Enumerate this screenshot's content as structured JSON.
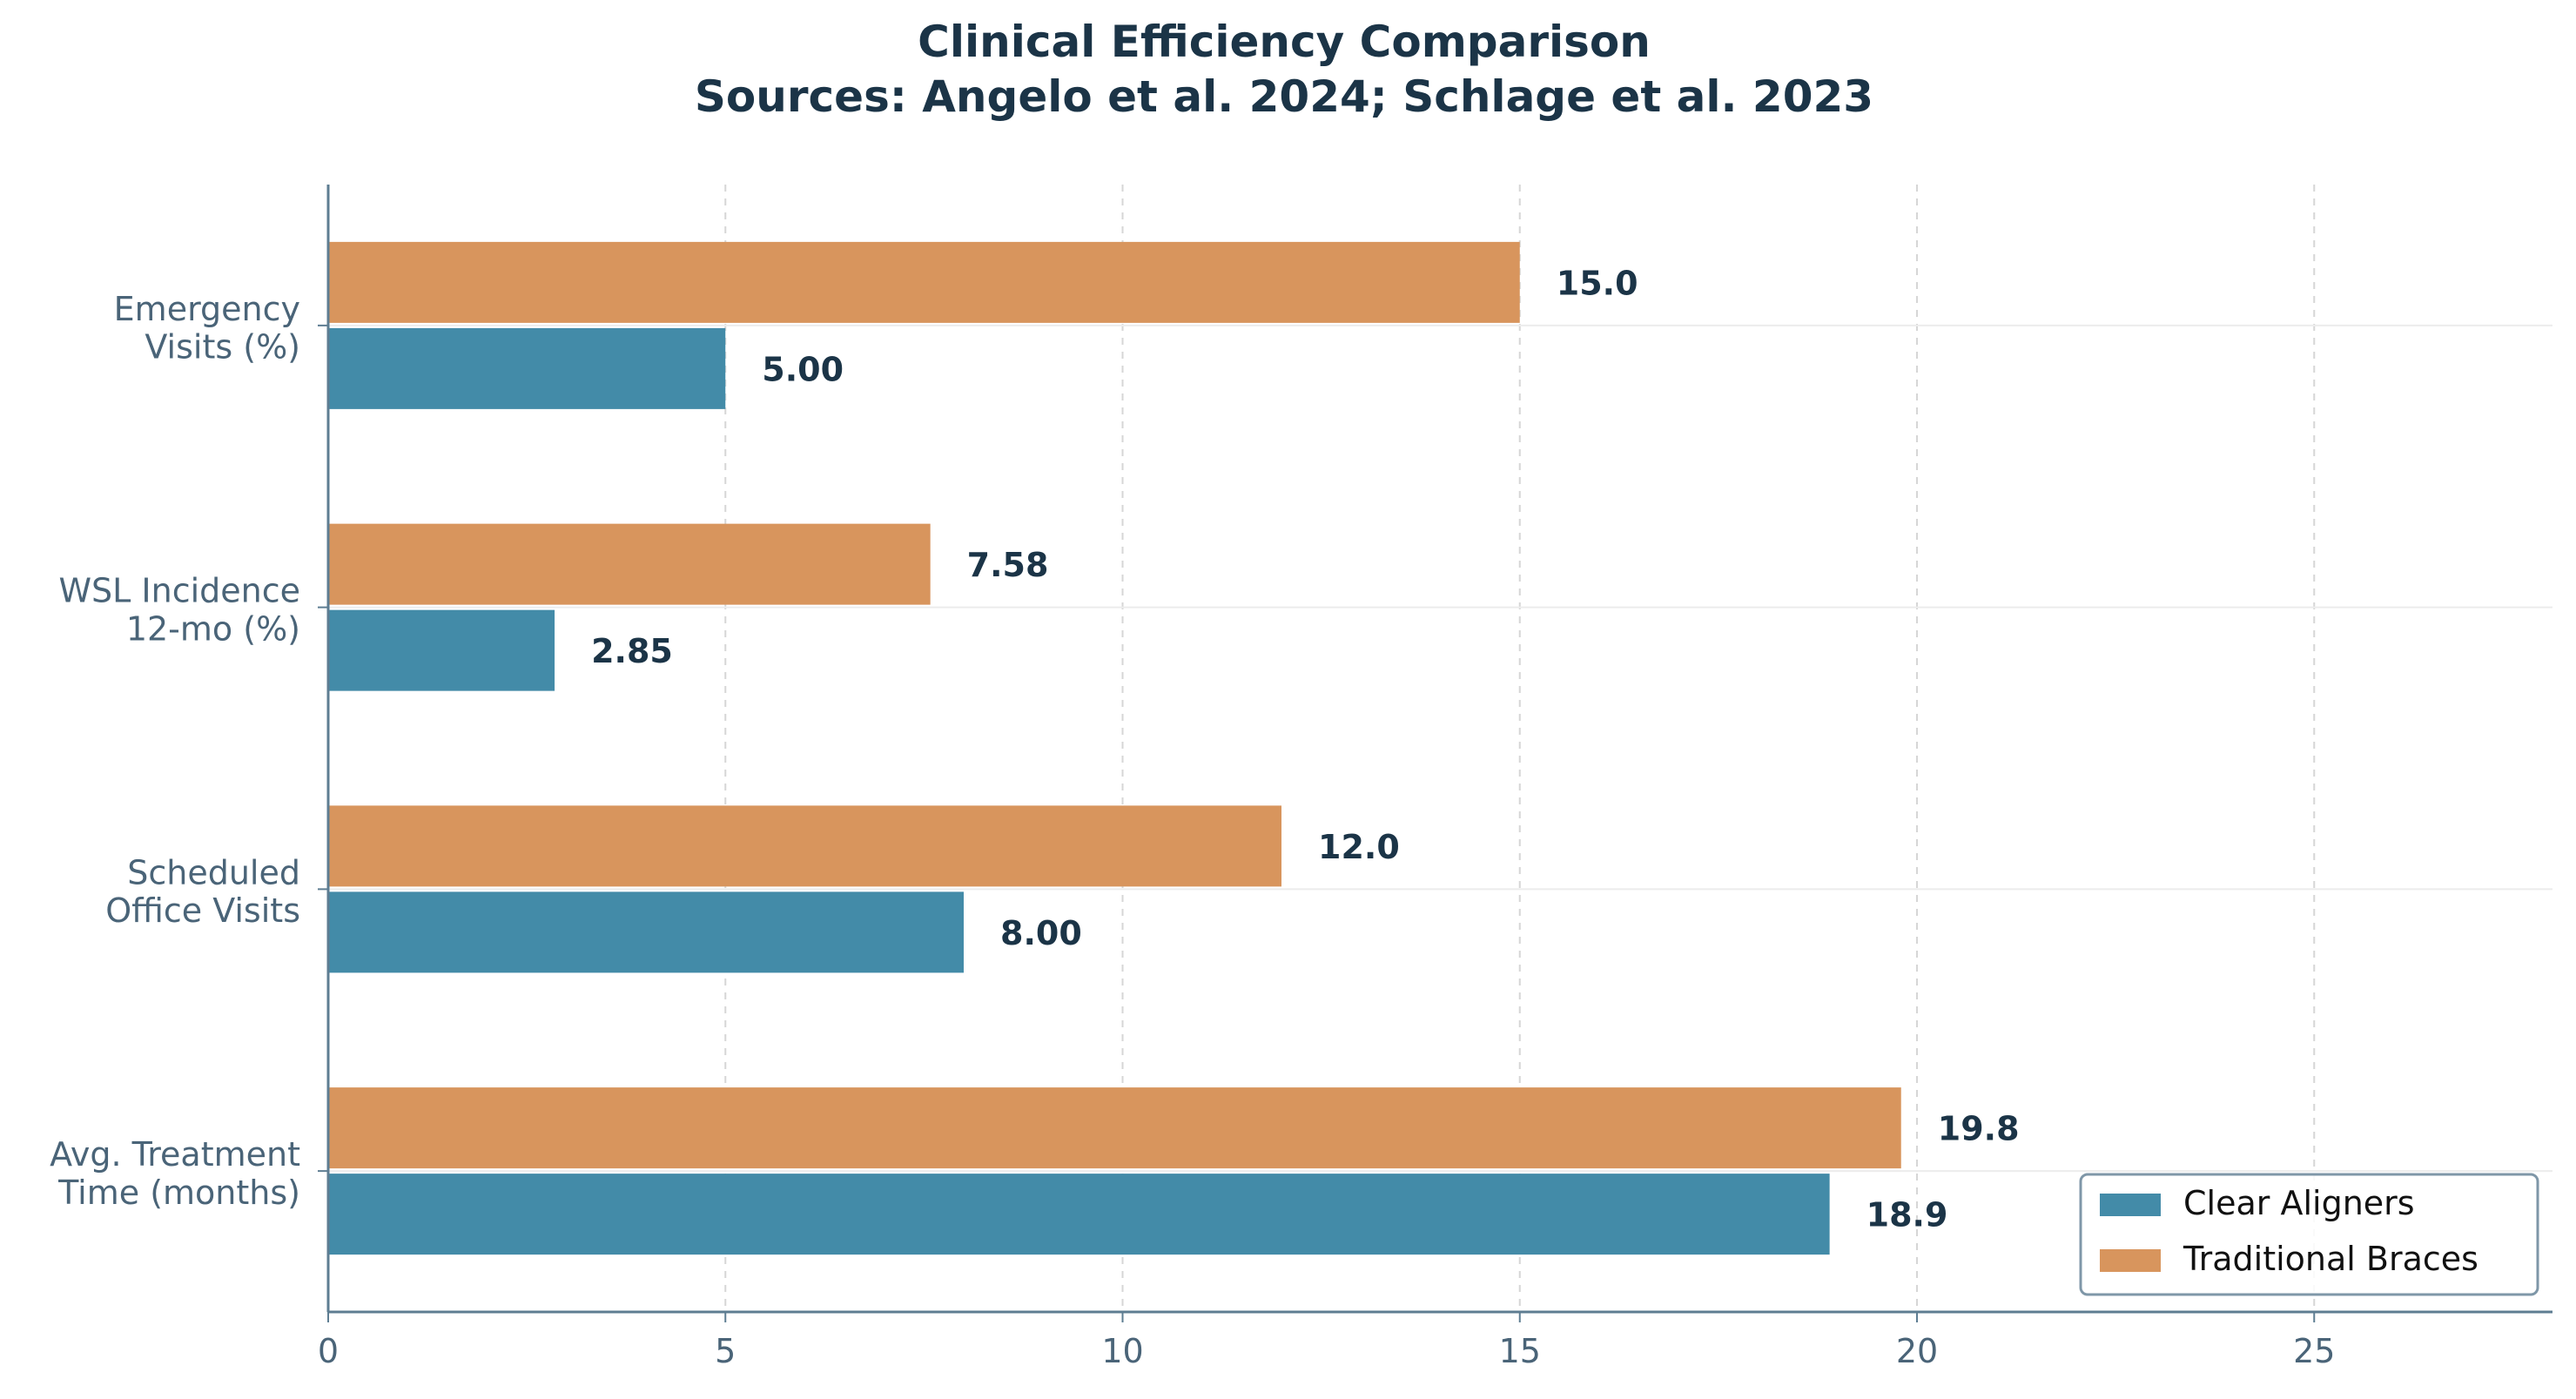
{
  "chart_data": {
    "type": "bar",
    "orientation": "horizontal",
    "title": "Clinical Efficiency Comparison",
    "subtitle": "Sources: Angelo et al. 2024; Schlage et al. 2023",
    "categories": [
      [
        "Emergency",
        "Visits (%)"
      ],
      [
        "WSL Incidence",
        "12-mo (%)"
      ],
      [
        "Scheduled",
        "Office Visits"
      ],
      [
        "Avg. Treatment",
        "Time (months)"
      ]
    ],
    "series": [
      {
        "name": "Clear Aligners",
        "values": [
          5.0,
          2.85,
          8.0,
          18.9
        ],
        "labels": [
          "5.00",
          "2.85",
          "8.00",
          "18.9"
        ],
        "color": "#438ba8"
      },
      {
        "name": "Traditional Braces",
        "values": [
          15.0,
          7.58,
          12.0,
          19.8
        ],
        "labels": [
          "15.0",
          "7.58",
          "12.0",
          "19.8"
        ],
        "color": "#d8955d"
      }
    ],
    "xlim": [
      0,
      28
    ],
    "xticks": [
      "0",
      "5",
      "10",
      "15",
      "20",
      "25"
    ],
    "xlabel": "",
    "ylabel": "",
    "grid": "vertical dashed",
    "legend": "lower-right"
  }
}
